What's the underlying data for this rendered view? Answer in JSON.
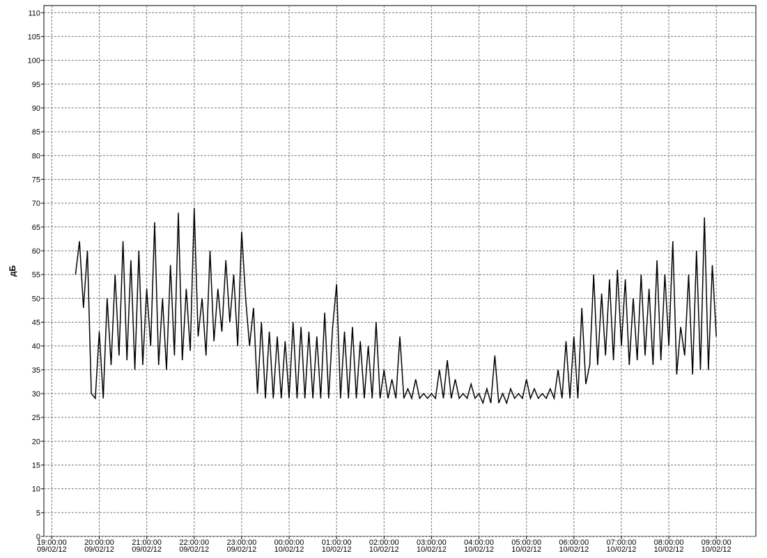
{
  "chart_data": {
    "type": "line",
    "ylabel": "дБ",
    "color": "#000000",
    "grid": true,
    "ylim": [
      0,
      111.5
    ],
    "yticks": [
      0,
      5,
      10,
      15,
      20,
      25,
      30,
      35,
      40,
      45,
      50,
      55,
      60,
      65,
      70,
      75,
      80,
      85,
      90,
      95,
      100,
      105,
      110
    ],
    "xlim": [
      "2012-02-09T18:50",
      "2012-02-10T09:50"
    ],
    "xticks": [
      {
        "value": "2012-02-09T19:00",
        "label": [
          "19:00:00",
          "09/02/12"
        ]
      },
      {
        "value": "2012-02-09T20:00",
        "label": [
          "20:00:00",
          "09/02/12"
        ]
      },
      {
        "value": "2012-02-09T21:00",
        "label": [
          "21:00:00",
          "09/02/12"
        ]
      },
      {
        "value": "2012-02-09T22:00",
        "label": [
          "22:00:00",
          "09/02/12"
        ]
      },
      {
        "value": "2012-02-09T23:00",
        "label": [
          "23:00:00",
          "09/02/12"
        ]
      },
      {
        "value": "2012-02-10T00:00",
        "label": [
          "00:00:00",
          "10/02/12"
        ]
      },
      {
        "value": "2012-02-10T01:00",
        "label": [
          "01:00:00",
          "10/02/12"
        ]
      },
      {
        "value": "2012-02-10T02:00",
        "label": [
          "02:00:00",
          "10/02/12"
        ]
      },
      {
        "value": "2012-02-10T03:00",
        "label": [
          "03:00:00",
          "10/02/12"
        ]
      },
      {
        "value": "2012-02-10T04:00",
        "label": [
          "04:00:00",
          "10/02/12"
        ]
      },
      {
        "value": "2012-02-10T05:00",
        "label": [
          "05:00:00",
          "10/02/12"
        ]
      },
      {
        "value": "2012-02-10T06:00",
        "label": [
          "06:00:00",
          "10/02/12"
        ]
      },
      {
        "value": "2012-02-10T07:00",
        "label": [
          "07:00:00",
          "10/02/12"
        ]
      },
      {
        "value": "2012-02-10T08:00",
        "label": [
          "08:00:00",
          "10/02/12"
        ]
      },
      {
        "value": "2012-02-10T09:00",
        "label": [
          "09:00:00",
          "10/02/12"
        ]
      }
    ],
    "x": [
      "2012-02-09T19:30",
      "2012-02-09T19:35",
      "2012-02-09T19:40",
      "2012-02-09T19:45",
      "2012-02-09T19:50",
      "2012-02-09T19:55",
      "2012-02-09T20:00",
      "2012-02-09T20:05",
      "2012-02-09T20:10",
      "2012-02-09T20:15",
      "2012-02-09T20:20",
      "2012-02-09T20:25",
      "2012-02-09T20:30",
      "2012-02-09T20:35",
      "2012-02-09T20:40",
      "2012-02-09T20:45",
      "2012-02-09T20:50",
      "2012-02-09T20:55",
      "2012-02-09T21:00",
      "2012-02-09T21:05",
      "2012-02-09T21:10",
      "2012-02-09T21:15",
      "2012-02-09T21:20",
      "2012-02-09T21:25",
      "2012-02-09T21:30",
      "2012-02-09T21:35",
      "2012-02-09T21:40",
      "2012-02-09T21:45",
      "2012-02-09T21:50",
      "2012-02-09T21:55",
      "2012-02-09T22:00",
      "2012-02-09T22:05",
      "2012-02-09T22:10",
      "2012-02-09T22:15",
      "2012-02-09T22:20",
      "2012-02-09T22:25",
      "2012-02-09T22:30",
      "2012-02-09T22:35",
      "2012-02-09T22:40",
      "2012-02-09T22:45",
      "2012-02-09T22:50",
      "2012-02-09T22:55",
      "2012-02-09T23:00",
      "2012-02-09T23:05",
      "2012-02-09T23:10",
      "2012-02-09T23:15",
      "2012-02-09T23:20",
      "2012-02-09T23:25",
      "2012-02-09T23:30",
      "2012-02-09T23:35",
      "2012-02-09T23:40",
      "2012-02-09T23:45",
      "2012-02-09T23:50",
      "2012-02-09T23:55",
      "2012-02-10T00:00",
      "2012-02-10T00:05",
      "2012-02-10T00:10",
      "2012-02-10T00:15",
      "2012-02-10T00:20",
      "2012-02-10T00:25",
      "2012-02-10T00:30",
      "2012-02-10T00:35",
      "2012-02-10T00:40",
      "2012-02-10T00:45",
      "2012-02-10T00:50",
      "2012-02-10T00:55",
      "2012-02-10T01:00",
      "2012-02-10T01:05",
      "2012-02-10T01:10",
      "2012-02-10T01:15",
      "2012-02-10T01:20",
      "2012-02-10T01:25",
      "2012-02-10T01:30",
      "2012-02-10T01:35",
      "2012-02-10T01:40",
      "2012-02-10T01:45",
      "2012-02-10T01:50",
      "2012-02-10T01:55",
      "2012-02-10T02:00",
      "2012-02-10T02:05",
      "2012-02-10T02:10",
      "2012-02-10T02:15",
      "2012-02-10T02:20",
      "2012-02-10T02:25",
      "2012-02-10T02:30",
      "2012-02-10T02:35",
      "2012-02-10T02:40",
      "2012-02-10T02:45",
      "2012-02-10T02:50",
      "2012-02-10T02:55",
      "2012-02-10T03:00",
      "2012-02-10T03:05",
      "2012-02-10T03:10",
      "2012-02-10T03:15",
      "2012-02-10T03:20",
      "2012-02-10T03:25",
      "2012-02-10T03:30",
      "2012-02-10T03:35",
      "2012-02-10T03:40",
      "2012-02-10T03:45",
      "2012-02-10T03:50",
      "2012-02-10T03:55",
      "2012-02-10T04:00",
      "2012-02-10T04:05",
      "2012-02-10T04:10",
      "2012-02-10T04:15",
      "2012-02-10T04:20",
      "2012-02-10T04:25",
      "2012-02-10T04:30",
      "2012-02-10T04:35",
      "2012-02-10T04:40",
      "2012-02-10T04:45",
      "2012-02-10T04:50",
      "2012-02-10T04:55",
      "2012-02-10T05:00",
      "2012-02-10T05:05",
      "2012-02-10T05:10",
      "2012-02-10T05:15",
      "2012-02-10T05:20",
      "2012-02-10T05:25",
      "2012-02-10T05:30",
      "2012-02-10T05:35",
      "2012-02-10T05:40",
      "2012-02-10T05:45",
      "2012-02-10T05:50",
      "2012-02-10T05:55",
      "2012-02-10T06:00",
      "2012-02-10T06:05",
      "2012-02-10T06:10",
      "2012-02-10T06:15",
      "2012-02-10T06:20",
      "2012-02-10T06:25",
      "2012-02-10T06:30",
      "2012-02-10T06:35",
      "2012-02-10T06:40",
      "2012-02-10T06:45",
      "2012-02-10T06:50",
      "2012-02-10T06:55",
      "2012-02-10T07:00",
      "2012-02-10T07:05",
      "2012-02-10T07:10",
      "2012-02-10T07:15",
      "2012-02-10T07:20",
      "2012-02-10T07:25",
      "2012-02-10T07:30",
      "2012-02-10T07:35",
      "2012-02-10T07:40",
      "2012-02-10T07:45",
      "2012-02-10T07:50",
      "2012-02-10T07:55",
      "2012-02-10T08:00",
      "2012-02-10T08:05",
      "2012-02-10T08:10",
      "2012-02-10T08:15",
      "2012-02-10T08:20",
      "2012-02-10T08:25",
      "2012-02-10T08:30",
      "2012-02-10T08:35",
      "2012-02-10T08:40",
      "2012-02-10T08:45",
      "2012-02-10T08:50",
      "2012-02-10T08:55",
      "2012-02-10T09:00"
    ],
    "values": [
      55,
      62,
      48,
      60,
      30,
      29,
      43,
      29,
      50,
      36,
      55,
      38,
      62,
      37,
      58,
      35,
      60,
      36,
      52,
      40,
      66,
      36,
      50,
      35,
      57,
      38,
      68,
      37,
      52,
      39,
      69,
      42,
      50,
      38,
      60,
      41,
      52,
      43,
      58,
      45,
      55,
      40,
      64,
      50,
      40,
      48,
      30,
      45,
      29,
      43,
      29,
      42,
      29,
      41,
      29,
      45,
      29,
      44,
      29,
      43,
      29,
      42,
      29,
      47,
      29,
      44,
      53,
      29,
      43,
      29,
      44,
      29,
      41,
      29,
      40,
      29,
      45,
      29,
      35,
      29,
      33,
      29,
      42,
      29,
      31,
      29,
      33,
      29,
      30,
      29,
      30,
      29,
      35,
      29,
      37,
      29,
      33,
      29,
      30,
      29,
      32,
      29,
      30,
      28,
      31,
      28,
      38,
      28,
      30,
      28,
      31,
      29,
      30,
      29,
      33,
      29,
      31,
      29,
      30,
      29,
      31,
      29,
      35,
      29,
      41,
      29,
      42,
      29,
      48,
      32,
      36,
      55,
      36,
      51,
      38,
      54,
      37,
      56,
      40,
      54,
      36,
      50,
      37,
      55,
      38,
      52,
      36,
      58,
      37,
      55,
      40,
      62,
      34,
      44,
      38,
      55,
      34,
      60,
      35,
      67,
      35,
      57,
      42
    ]
  }
}
